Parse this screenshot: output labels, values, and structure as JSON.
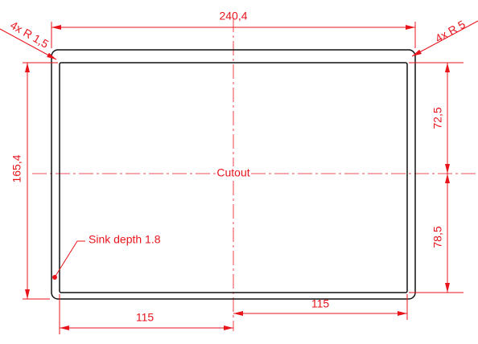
{
  "dimensions": {
    "width": "240,4",
    "height": "165,4",
    "upper_right": "72,5",
    "lower_right": "78,5",
    "bottom_left": "115",
    "bottom_right": "115"
  },
  "annotations": {
    "corner_small": "4x R 1,5",
    "corner_large": "4x R 5",
    "center": "Cutout",
    "sink": "Sink depth 1.8"
  }
}
